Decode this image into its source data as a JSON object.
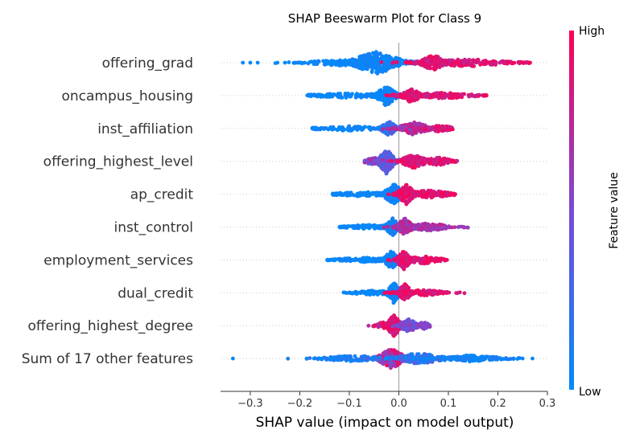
{
  "chart_data": {
    "type": "scatter",
    "subtype": "beeswarm",
    "title": "SHAP Beeswarm Plot for Class 9",
    "xlabel": "SHAP value (impact on model output)",
    "xlim": [
      -0.36,
      0.3
    ],
    "xticks": [
      "−0.3",
      "−0.2",
      "−0.1",
      "0.0",
      "0.1",
      "0.2",
      "0.3"
    ],
    "xtick_values": [
      -0.3,
      -0.2,
      -0.1,
      0.0,
      0.1,
      0.2,
      0.3
    ],
    "zero_line": true,
    "colorbar": {
      "label": "Feature value",
      "high": "High",
      "low": "Low",
      "low_color": "#008bfb",
      "high_color": "#ff0052"
    },
    "features": [
      {
        "name": "offering_grad",
        "min": -0.315,
        "max": 0.265,
        "clusters": [
          {
            "center": -0.045,
            "spread": 0.04,
            "width": 14,
            "n": 260,
            "low": 0.0,
            "high": 0.12
          },
          {
            "center": -0.11,
            "spread": 0.06,
            "width": 4,
            "n": 120,
            "low": 0.0,
            "high": 0.1
          },
          {
            "center": 0.07,
            "spread": 0.02,
            "width": 10,
            "n": 160,
            "low": 0.75,
            "high": 1.0
          },
          {
            "center": 0.14,
            "spread": 0.07,
            "width": 5,
            "n": 180,
            "low": 0.75,
            "high": 1.0
          }
        ],
        "outliers_low": [
          -0.315,
          -0.3,
          -0.285,
          -0.245,
          -0.23,
          -0.21,
          -0.19
        ],
        "outliers_high": [
          0.25,
          0.265
        ]
      },
      {
        "name": "oncampus_housing",
        "min": -0.185,
        "max": 0.18,
        "clusters": [
          {
            "center": -0.025,
            "spread": 0.015,
            "width": 13,
            "n": 200,
            "low": 0.0,
            "high": 0.1
          },
          {
            "center": -0.1,
            "spread": 0.07,
            "width": 3,
            "n": 130,
            "low": 0.0,
            "high": 0.08
          },
          {
            "center": 0.025,
            "spread": 0.015,
            "width": 9,
            "n": 140,
            "low": 0.7,
            "high": 1.0
          },
          {
            "center": 0.09,
            "spread": 0.05,
            "width": 4,
            "n": 160,
            "low": 0.7,
            "high": 1.0
          }
        ],
        "outliers_low": [],
        "outliers_high": []
      },
      {
        "name": "inst_affiliation",
        "min": -0.175,
        "max": 0.11,
        "clusters": [
          {
            "center": -0.02,
            "spread": 0.012,
            "width": 9,
            "n": 120,
            "low": 0.1,
            "high": 0.35
          },
          {
            "center": -0.1,
            "spread": 0.06,
            "width": 3,
            "n": 120,
            "low": 0.0,
            "high": 0.08
          },
          {
            "center": 0.03,
            "spread": 0.025,
            "width": 8,
            "n": 150,
            "low": 0.55,
            "high": 0.9
          },
          {
            "center": 0.08,
            "spread": 0.025,
            "width": 4,
            "n": 90,
            "low": 0.7,
            "high": 1.0
          }
        ],
        "outliers_low": [],
        "outliers_high": []
      },
      {
        "name": "offering_highest_level",
        "min": -0.07,
        "max": 0.12,
        "clusters": [
          {
            "center": -0.025,
            "spread": 0.012,
            "width": 16,
            "n": 200,
            "low": 0.15,
            "high": 0.5
          },
          {
            "center": -0.05,
            "spread": 0.015,
            "width": 5,
            "n": 60,
            "low": 0.4,
            "high": 0.8
          },
          {
            "center": 0.03,
            "spread": 0.02,
            "width": 9,
            "n": 150,
            "low": 0.75,
            "high": 1.0
          },
          {
            "center": 0.08,
            "spread": 0.025,
            "width": 5,
            "n": 90,
            "low": 0.75,
            "high": 1.0
          }
        ],
        "outliers_low": [],
        "outliers_high": []
      },
      {
        "name": "ap_credit",
        "min": -0.135,
        "max": 0.115,
        "clusters": [
          {
            "center": -0.01,
            "spread": 0.015,
            "width": 13,
            "n": 150,
            "low": 0.0,
            "high": 0.12
          },
          {
            "center": -0.07,
            "spread": 0.05,
            "width": 3,
            "n": 120,
            "low": 0.0,
            "high": 0.08
          },
          {
            "center": 0.015,
            "spread": 0.012,
            "width": 13,
            "n": 160,
            "low": 0.8,
            "high": 1.0
          },
          {
            "center": 0.06,
            "spread": 0.04,
            "width": 5,
            "n": 130,
            "low": 0.8,
            "high": 1.0
          }
        ],
        "outliers_low": [],
        "outliers_high": []
      },
      {
        "name": "inst_control",
        "min": -0.12,
        "max": 0.14,
        "clusters": [
          {
            "center": -0.012,
            "spread": 0.012,
            "width": 11,
            "n": 140,
            "low": 0.0,
            "high": 0.12
          },
          {
            "center": -0.06,
            "spread": 0.04,
            "width": 3,
            "n": 110,
            "low": 0.0,
            "high": 0.08
          },
          {
            "center": 0.012,
            "spread": 0.012,
            "width": 11,
            "n": 130,
            "low": 0.55,
            "high": 0.85
          },
          {
            "center": 0.06,
            "spread": 0.035,
            "width": 5,
            "n": 110,
            "low": 0.55,
            "high": 0.8
          }
        ],
        "outliers_low": [],
        "outliers_high": []
      },
      {
        "name": "employment_services",
        "min": -0.145,
        "max": 0.1,
        "clusters": [
          {
            "center": -0.015,
            "spread": 0.012,
            "width": 11,
            "n": 130,
            "low": 0.0,
            "high": 0.1
          },
          {
            "center": -0.07,
            "spread": 0.05,
            "width": 3,
            "n": 120,
            "low": 0.0,
            "high": 0.08
          },
          {
            "center": 0.01,
            "spread": 0.01,
            "width": 12,
            "n": 120,
            "low": 0.75,
            "high": 1.0
          },
          {
            "center": 0.05,
            "spread": 0.03,
            "width": 5,
            "n": 110,
            "low": 0.75,
            "high": 1.0
          }
        ],
        "outliers_low": [],
        "outliers_high": []
      },
      {
        "name": "dual_credit",
        "min": -0.115,
        "max": 0.135,
        "clusters": [
          {
            "center": -0.01,
            "spread": 0.01,
            "width": 13,
            "n": 120,
            "low": 0.0,
            "high": 0.1
          },
          {
            "center": -0.05,
            "spread": 0.035,
            "width": 3,
            "n": 100,
            "low": 0.0,
            "high": 0.08
          },
          {
            "center": 0.012,
            "spread": 0.01,
            "width": 11,
            "n": 120,
            "low": 0.75,
            "high": 1.0
          },
          {
            "center": 0.05,
            "spread": 0.035,
            "width": 4,
            "n": 110,
            "low": 0.75,
            "high": 1.0
          }
        ],
        "outliers_low": [],
        "outliers_high": []
      },
      {
        "name": "offering_highest_degree",
        "min": -0.065,
        "max": 0.065,
        "clusters": [
          {
            "center": -0.01,
            "spread": 0.01,
            "width": 14,
            "n": 160,
            "low": 0.75,
            "high": 1.0
          },
          {
            "center": -0.03,
            "spread": 0.015,
            "width": 5,
            "n": 60,
            "low": 0.7,
            "high": 1.0
          },
          {
            "center": 0.02,
            "spread": 0.015,
            "width": 8,
            "n": 110,
            "low": 0.35,
            "high": 0.6
          },
          {
            "center": 0.05,
            "spread": 0.01,
            "width": 5,
            "n": 50,
            "low": 0.4,
            "high": 0.65
          }
        ],
        "outliers_low": [],
        "outliers_high": []
      },
      {
        "name": "Sum of 17 other features",
        "min": -0.335,
        "max": 0.27,
        "clusters": [
          {
            "center": -0.015,
            "spread": 0.02,
            "width": 13,
            "n": 220,
            "low": 0.45,
            "high": 1.0
          },
          {
            "center": -0.09,
            "spread": 0.05,
            "width": 4,
            "n": 130,
            "low": 0.0,
            "high": 0.2
          },
          {
            "center": 0.04,
            "spread": 0.04,
            "width": 7,
            "n": 150,
            "low": 0.0,
            "high": 0.4
          },
          {
            "center": 0.14,
            "spread": 0.06,
            "width": 4,
            "n": 150,
            "low": 0.0,
            "high": 0.15
          }
        ],
        "outliers_low": [
          -0.335,
          -0.16,
          -0.155
        ],
        "outliers_high": [
          0.25,
          0.27
        ]
      }
    ]
  }
}
